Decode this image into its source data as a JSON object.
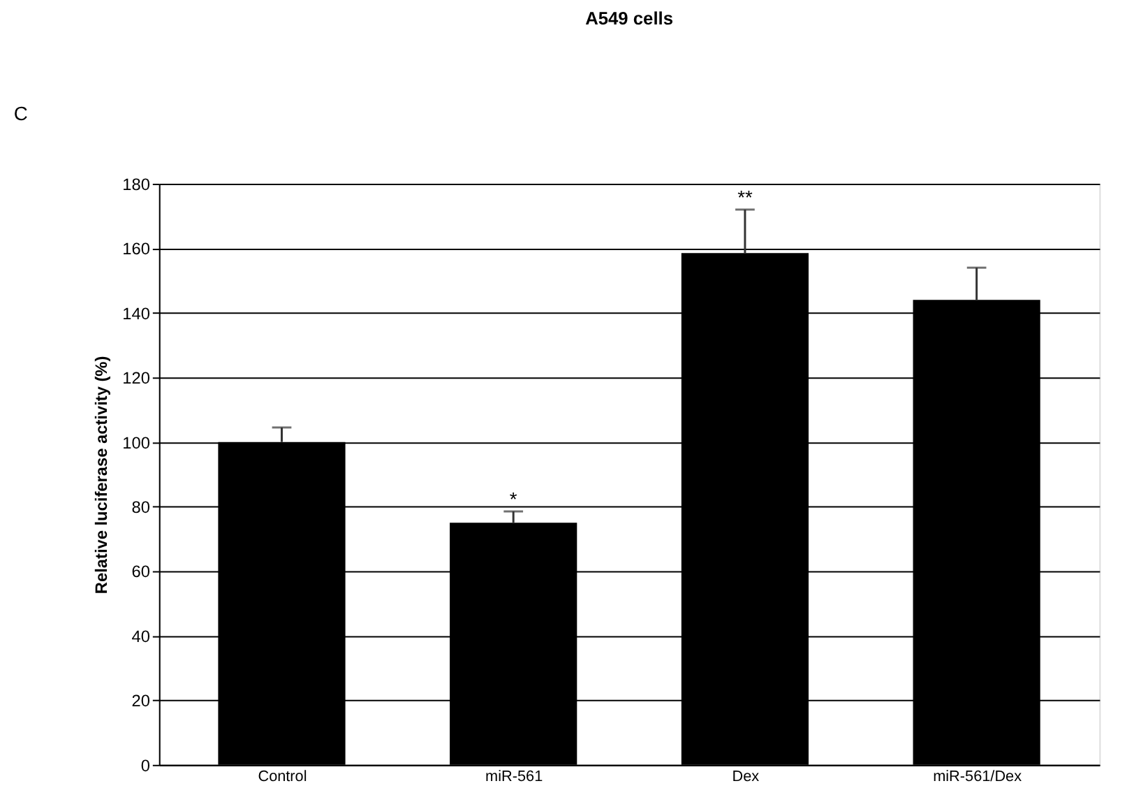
{
  "chart_data": {
    "type": "bar",
    "title": "A549 cells",
    "ylabel": "Relative luciferase activity (%)",
    "categories": [
      "Control",
      "miR-561",
      "Dex",
      "miR-561/Dex"
    ],
    "values": [
      100,
      75,
      158.5,
      144
    ],
    "errors": [
      [
        100,
        104.5
      ],
      [
        75,
        78.5
      ],
      [
        158.5,
        172
      ],
      [
        144,
        154
      ]
    ],
    "color": "#000000",
    "ylim": [
      0,
      180
    ],
    "yticks": [
      0,
      20,
      40,
      60,
      80,
      100,
      120,
      140,
      160,
      180
    ],
    "grid": "y",
    "annotations": [
      "C",
      {
        "text": "*",
        "x": "miR-561",
        "y": 78.5
      },
      {
        "text": "**",
        "x": "Dex",
        "y": 172
      }
    ]
  }
}
